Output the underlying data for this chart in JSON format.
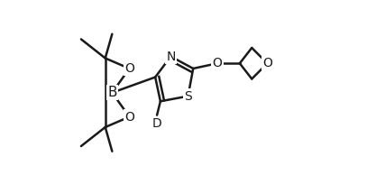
{
  "bg_color": "#ffffff",
  "line_color": "#1a1a1a",
  "lw": 1.8,
  "font_size": 10,
  "figsize": [
    4.17,
    1.94
  ],
  "dpi": 100,
  "xlim": [
    0.0,
    8.5
  ],
  "ylim": [
    0.5,
    5.5
  ]
}
